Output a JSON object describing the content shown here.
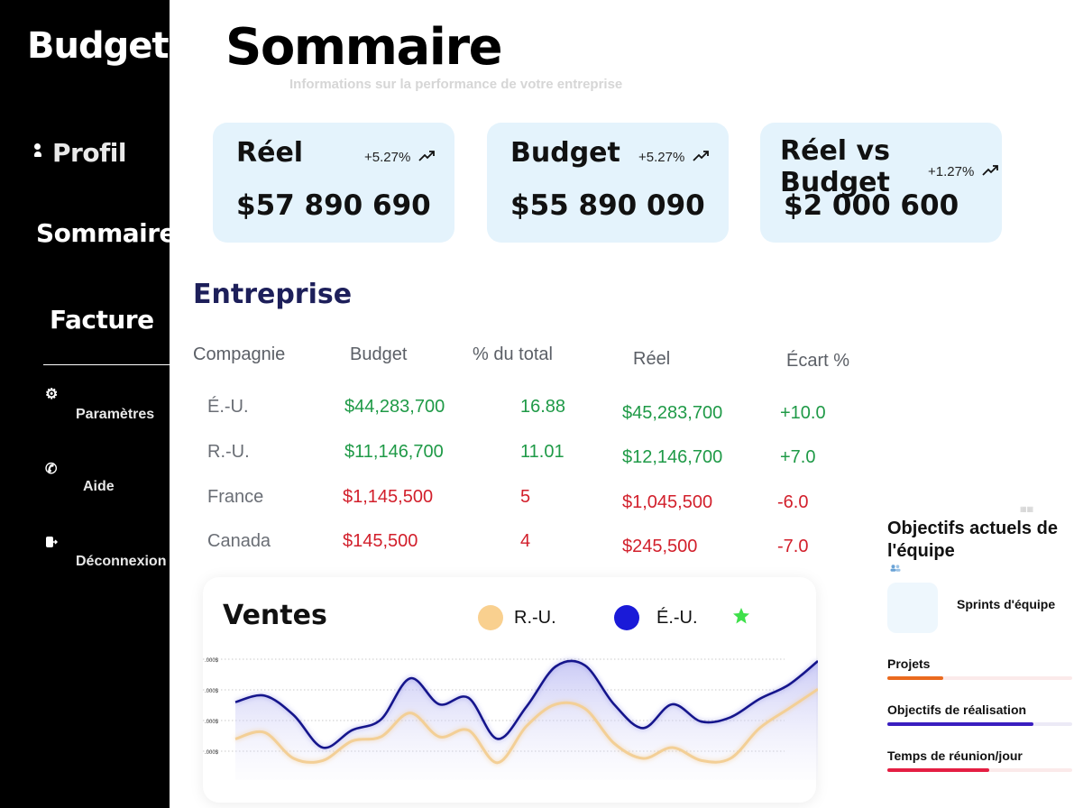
{
  "sidebar": {
    "brand": "Budget",
    "nav": {
      "profil": "Profil",
      "sommaire": "Sommaire",
      "facture": "Facture",
      "parametres": "Paramètres",
      "aide": "Aide",
      "deconnexion": "Déconnexion"
    },
    "icons": {
      "profil": "person-icon",
      "parametres": "gear-icon",
      "aide": "phone-icon",
      "deconnexion": "logout-icon"
    }
  },
  "header": {
    "title": "Sommaire",
    "subtitle": "Informations sur la performance de votre entreprise"
  },
  "cards": [
    {
      "title": "Réel",
      "delta": "+5.27%",
      "value": "$57 890 690",
      "trend_icon": "trend-up-icon"
    },
    {
      "title": "Budget",
      "delta": "+5.27%",
      "value": "$55 890 090",
      "trend_icon": "trend-up-icon"
    },
    {
      "title": "Réel vs Budget",
      "delta": "+1.27%",
      "value": "$2 000 600",
      "trend_icon": "trend-up-icon"
    }
  ],
  "entreprise": {
    "title": "Entreprise",
    "headers": [
      "Compagnie",
      "Budget",
      "% du total",
      "Réel",
      "Écart %"
    ],
    "rows": [
      {
        "country": "É.-U.",
        "budget": "$44,283,700",
        "pct": "16.88",
        "reel": "$45,283,700",
        "ecart": "+10.0",
        "status": "positive"
      },
      {
        "country": "R.-U.",
        "budget": "$11,146,700",
        "pct": "11.01",
        "reel": "$12,146,700",
        "ecart": "+7.0",
        "status": "positive"
      },
      {
        "country": "France",
        "budget": "$1,145,500",
        "pct": "5",
        "reel": "$1,045,500",
        "ecart": "-6.0",
        "status": "negative"
      },
      {
        "country": "Canada",
        "budget": "$145,500",
        "pct": "4",
        "reel": "$245,500",
        "ecart": "-7.0",
        "status": "negative"
      }
    ],
    "colors": {
      "positive": "#1f9a47",
      "negative": "#d21f2b"
    }
  },
  "ventes": {
    "title": "Ventes",
    "legend": [
      {
        "label": "R.-U.",
        "color": "#f9d08f"
      },
      {
        "label": "É.-U.",
        "color": "#1a1ad8"
      }
    ],
    "star_icon": "star-icon",
    "star_color": "#3ee04a",
    "y_tick_labels": [
      ".000$",
      ".000$",
      ".000$",
      ".000$"
    ]
  },
  "chart_data": {
    "type": "line",
    "title": "Ventes",
    "x": [
      0,
      1,
      2,
      3,
      4,
      5,
      6,
      7,
      8,
      9,
      10,
      11,
      12,
      13,
      14,
      15,
      16,
      17,
      18,
      19,
      20
    ],
    "series": [
      {
        "name": "É.-U.",
        "values": [
          62,
          68,
          50,
          20,
          36,
          46,
          84,
          60,
          66,
          28,
          58,
          95,
          96,
          60,
          38,
          60,
          44,
          48,
          65,
          78,
          100
        ]
      },
      {
        "name": "R.-U.",
        "values": [
          28,
          34,
          10,
          8,
          26,
          30,
          52,
          30,
          36,
          6,
          40,
          60,
          56,
          24,
          10,
          20,
          8,
          10,
          38,
          56,
          74
        ]
      }
    ],
    "ylim": [
      -10,
      115
    ],
    "grid": true,
    "legend": "top-right"
  },
  "objectifs": {
    "title": "Objectifs actuels de l'équipe",
    "sprint_label": "Sprints d'équipe",
    "items": [
      {
        "label": "Projets",
        "progress": 0.3,
        "color": "#ea6a1e"
      },
      {
        "label": "Objectifs de réalisation",
        "progress": 0.79,
        "color": "#3a1ec0"
      },
      {
        "label": "Temps de réunion/jour",
        "progress": 0.55,
        "color": "#e41e42"
      }
    ]
  }
}
